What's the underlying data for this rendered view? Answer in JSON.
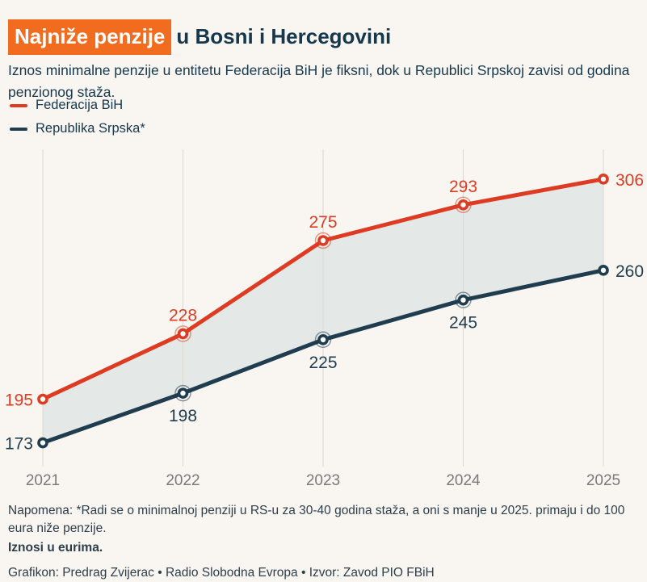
{
  "title": {
    "highlight": "Najniže penzije",
    "rest": "u Bosni i Hercegovini"
  },
  "subtitle": "Iznos minimalne penzije u entitetu Federacija BiH je fiksni, dok u Republici Srpskoj zavisi od godina penzionog staža.",
  "legend": [
    {
      "label": "Federacija BiH",
      "color": "#dd3c23"
    },
    {
      "label": "Republika Srpska*",
      "color": "#1f3d4e"
    }
  ],
  "chart_data": {
    "type": "line",
    "categories": [
      "2021",
      "2022",
      "2023",
      "2024",
      "2025"
    ],
    "series": [
      {
        "name": "Federacija BiH",
        "values": [
          195,
          228,
          275,
          293,
          306
        ],
        "color": "#dd3c23",
        "label_side": "above"
      },
      {
        "name": "Republika Srpska*",
        "values": [
          173,
          198,
          225,
          245,
          260
        ],
        "color": "#1f3d4e",
        "label_side": "below"
      }
    ],
    "title": "Najniže penzije u Bosni i Hercegovini",
    "xlabel": "",
    "ylabel": "",
    "unit": "euro",
    "ylim": [
      161,
      321
    ],
    "grid": "vertical-only",
    "area_between_series": true,
    "value_labels": "all-points",
    "legend_position": "top-left"
  },
  "notes": {
    "napomena": "Napomena: *Radi se o minimalnoj penziji u RS-u za 30-40 godina staža, a oni s manje u 2025. primaju i do 100 eura niže penzije.",
    "unit_note": "Iznosi u eurima.",
    "credit": "Grafikon: Predrag Zvijerac • Radio Slobodna Evropa • Izvor: Zavod PIO FBiH"
  },
  "colors": {
    "background": "#f9f6f2",
    "highlight_bg": "#f16c1f",
    "heading_text": "#16384d",
    "body_text": "#2c3e49",
    "federacija_line": "#dd3c23",
    "republika_line": "#1f3d4e",
    "area_fill": "#e4e9e8",
    "gridline": "#dbd8d3",
    "axis_tick_text": "#7c7a76",
    "marker_fill": "#ffffff"
  }
}
